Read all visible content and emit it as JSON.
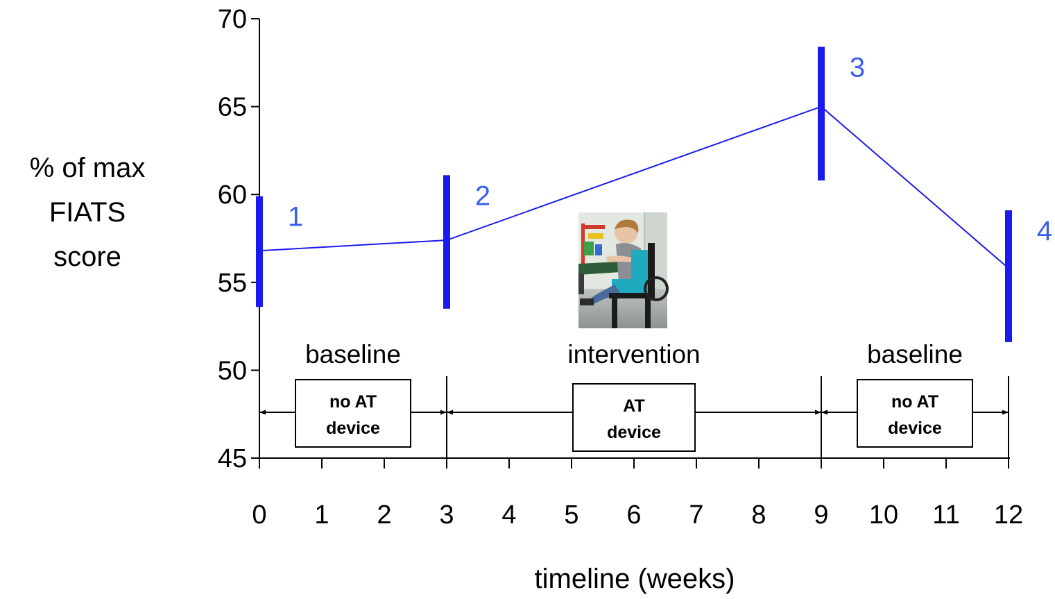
{
  "chart_data": {
    "type": "line",
    "xlabel": "timeline (weeks)",
    "ylabel": [
      "% of max",
      "FIATS",
      "score"
    ],
    "xlim": [
      0,
      12
    ],
    "ylim": [
      45,
      70
    ],
    "xticks": [
      "0",
      "1",
      "2",
      "3",
      "4",
      "5",
      "6",
      "7",
      "8",
      "9",
      "10",
      "11",
      "12"
    ],
    "yticks": [
      "45",
      "50",
      "55",
      "60",
      "65",
      "70"
    ],
    "grid": false,
    "colors": {
      "series": "#1a1aee",
      "point_label": "#3a5fe8",
      "axis": "#000000"
    },
    "series": [
      {
        "x": [
          0,
          3,
          9,
          12
        ],
        "values": [
          56.8,
          57.4,
          65.0,
          55.8
        ],
        "range_low": [
          53.6,
          53.5,
          60.8,
          51.6
        ],
        "range_high": [
          59.9,
          61.1,
          68.4,
          59.1
        ],
        "point_labels": [
          "1",
          "2",
          "3",
          "4"
        ]
      }
    ],
    "phases": [
      {
        "name": "baseline",
        "start": 0,
        "end": 3,
        "condition": [
          "no AT",
          "device"
        ]
      },
      {
        "name": "intervention",
        "start": 3,
        "end": 9,
        "condition": [
          "AT",
          "device"
        ]
      },
      {
        "name": "baseline",
        "start": 9,
        "end": 12,
        "condition": [
          "no AT",
          "device"
        ]
      }
    ],
    "photo": {
      "description_icon": "child-in-adaptive-seat-photo"
    }
  }
}
